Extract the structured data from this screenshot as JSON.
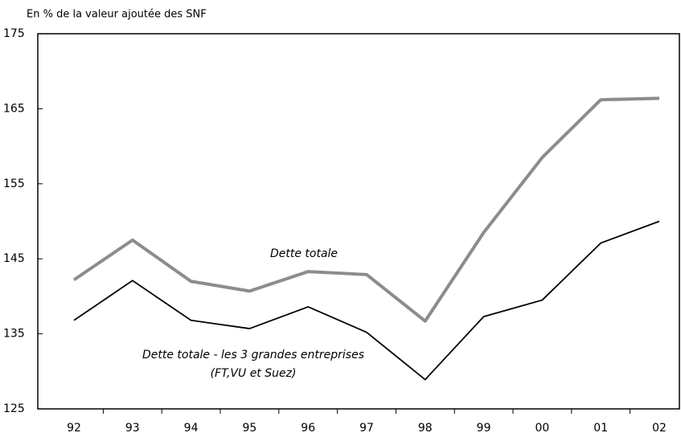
{
  "chart_data": {
    "type": "line",
    "subtitle": "En % de la valeur ajoutée des SNF",
    "categories": [
      "92",
      "93",
      "94",
      "95",
      "96",
      "97",
      "98",
      "99",
      "00",
      "01",
      "02"
    ],
    "series": [
      {
        "name": "Dette totale",
        "color": "#8c8c8c",
        "values": [
          142.2,
          147.5,
          142.0,
          140.7,
          143.3,
          142.9,
          136.7,
          148.5,
          158.5,
          166.2,
          166.4
        ]
      },
      {
        "name": "Dette totale - les 3 grandes entreprises",
        "color": "#000000",
        "values": [
          136.8,
          142.1,
          136.8,
          135.7,
          138.6,
          135.2,
          128.9,
          137.3,
          139.5,
          147.1,
          150.0
        ]
      }
    ],
    "annotation": "(FT,VU et Suez)",
    "ylim": [
      125,
      175
    ],
    "yticks": [
      125,
      135,
      145,
      155,
      165,
      175
    ],
    "grid": false
  }
}
